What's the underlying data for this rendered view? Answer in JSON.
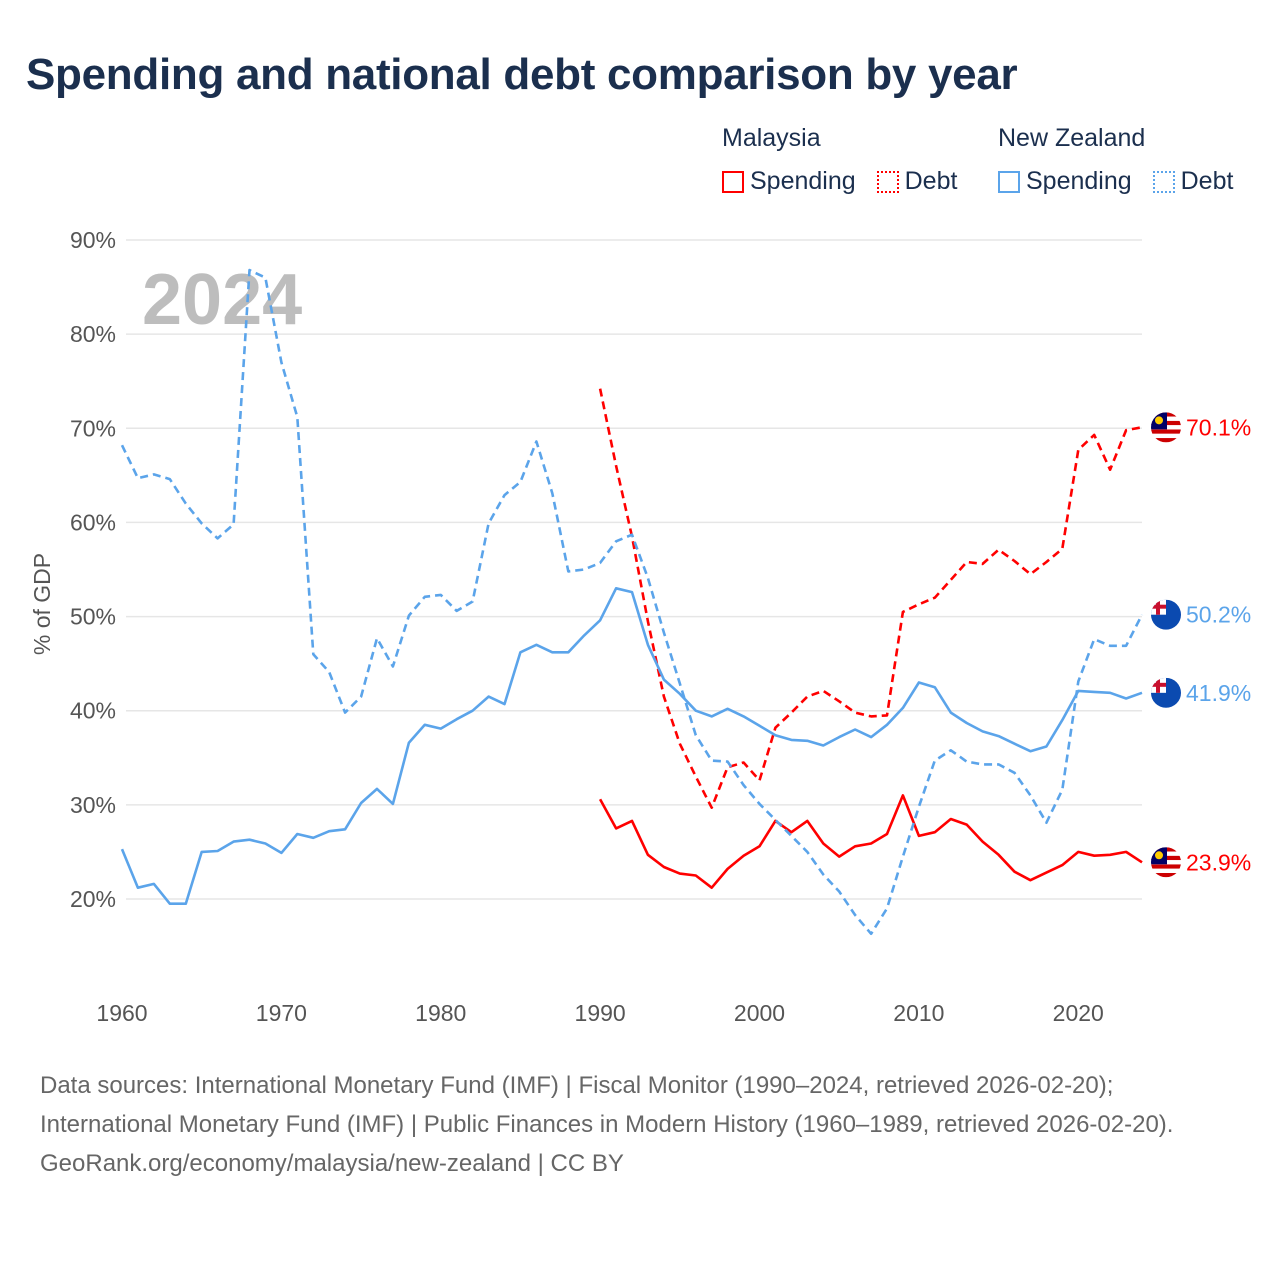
{
  "title": "Spending and national debt comparison by year",
  "legend": {
    "groups": [
      {
        "name": "Malaysia",
        "items": [
          {
            "label": "Spending",
            "style": "solid",
            "color": "#ff0000"
          },
          {
            "label": "Debt",
            "style": "dotted",
            "color": "#ff0000"
          }
        ]
      },
      {
        "name": "New Zealand",
        "items": [
          {
            "label": "Spending",
            "style": "solid",
            "color": "#5ba4ea"
          },
          {
            "label": "Debt",
            "style": "dotted",
            "color": "#5ba4ea"
          }
        ]
      }
    ]
  },
  "watermark_year": "2024",
  "footer": {
    "sources": "Data sources: International Monetary Fund (IMF) | Fiscal Monitor (1990–2024, retrieved 2026-02-20); International Monetary Fund (IMF) | Public Finances in Modern History (1960–1989, retrieved 2026-02-20).",
    "credit": "GeoRank.org/economy/malaysia/new-zealand | CC BY"
  },
  "chart_data": {
    "type": "line",
    "title": "Spending and national debt comparison by year",
    "xlabel": "",
    "ylabel": "% of GDP",
    "xlim": [
      1960,
      2024
    ],
    "ylim": [
      20,
      90
    ],
    "x_ticks": [
      1960,
      1970,
      1980,
      1990,
      2000,
      2010,
      2020
    ],
    "y_ticks": [
      20,
      30,
      40,
      50,
      60,
      70,
      80,
      90
    ],
    "y_tick_labels": [
      "20%",
      "30%",
      "40%",
      "50%",
      "60%",
      "70%",
      "80%",
      "90%"
    ],
    "grid": true,
    "legend_position": "top-right",
    "series": [
      {
        "name": "Malaysia Spending",
        "country": "Malaysia",
        "metric": "Spending",
        "color": "#ff0000",
        "dash": "solid",
        "start": 1990,
        "end_label": "23.9%",
        "values": [
          30.6,
          27.5,
          28.3,
          24.7,
          23.4,
          22.7,
          22.5,
          21.2,
          23.2,
          24.6,
          25.6,
          28.3,
          27.1,
          28.3,
          25.9,
          24.5,
          25.6,
          25.9,
          26.9,
          31.0,
          26.7,
          27.1,
          28.5,
          27.9,
          26.1,
          24.7,
          22.9,
          22.0,
          22.8,
          23.6,
          25.0,
          24.6,
          24.7,
          25.0,
          23.9
        ]
      },
      {
        "name": "Malaysia Debt",
        "country": "Malaysia",
        "metric": "Debt",
        "color": "#ff0000",
        "dash": "dashed",
        "start": 1990,
        "end_label": "70.1%",
        "values": [
          74.2,
          66.0,
          58.5,
          49.5,
          41.5,
          36.5,
          33.0,
          29.7,
          34.0,
          34.5,
          32.6,
          38.2,
          39.8,
          41.5,
          42.1,
          41.0,
          39.8,
          39.4,
          39.5,
          50.5,
          51.3,
          52.0,
          53.9,
          55.8,
          55.6,
          57.1,
          55.9,
          54.5,
          55.8,
          57.2,
          67.7,
          69.3,
          65.6,
          69.8,
          70.1
        ]
      },
      {
        "name": "New Zealand Spending",
        "country": "New Zealand",
        "metric": "Spending",
        "color": "#5ba4ea",
        "dash": "solid",
        "start": 1960,
        "end_label": "41.9%",
        "values": [
          25.3,
          21.2,
          21.6,
          19.5,
          19.5,
          25.0,
          25.1,
          26.1,
          26.3,
          25.9,
          24.9,
          26.9,
          26.5,
          27.2,
          27.4,
          30.2,
          31.7,
          30.1,
          36.6,
          38.5,
          38.1,
          39.1,
          40.0,
          41.5,
          40.7,
          46.2,
          47.0,
          46.2,
          46.2,
          48.0,
          49.6,
          53.0,
          52.6,
          47.0,
          43.3,
          41.8,
          40.0,
          39.4,
          40.2,
          39.4,
          38.4,
          37.4,
          36.9,
          36.8,
          36.3,
          37.2,
          38.0,
          37.2,
          38.5,
          40.3,
          43.0,
          42.5,
          39.8,
          38.7,
          37.8,
          37.3,
          36.5,
          35.7,
          36.2,
          39.0,
          42.1,
          42.0,
          41.9,
          41.3,
          41.9
        ]
      },
      {
        "name": "New Zealand Debt",
        "country": "New Zealand",
        "metric": "Debt",
        "color": "#5ba4ea",
        "dash": "dashed",
        "start": 1960,
        "end_label": "50.2%",
        "values": [
          68.2,
          64.7,
          65.1,
          64.6,
          62.0,
          59.9,
          58.3,
          59.8,
          86.8,
          86.0,
          77.0,
          71.2,
          46.0,
          44.1,
          39.8,
          41.5,
          47.7,
          44.7,
          50.1,
          52.1,
          52.3,
          50.6,
          51.6,
          59.9,
          62.9,
          64.3,
          68.6,
          63.1,
          54.8,
          55.0,
          55.7,
          58.0,
          58.7,
          54.1,
          48.3,
          42.9,
          37.4,
          34.7,
          34.6,
          32.1,
          30.1,
          28.4,
          26.7,
          25.0,
          22.6,
          20.8,
          18.3,
          16.3,
          19.0,
          24.5,
          29.8,
          34.7,
          35.8,
          34.6,
          34.3,
          34.3,
          33.4,
          31.0,
          28.1,
          31.6,
          43.1,
          47.6,
          46.9,
          46.9,
          50.2
        ]
      }
    ]
  }
}
